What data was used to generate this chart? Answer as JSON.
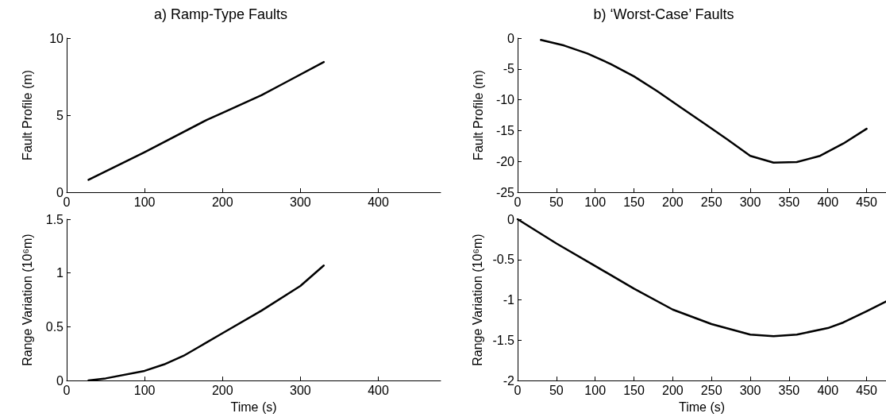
{
  "chart_data": [
    {
      "type": "line",
      "title": "a) Ramp-Type Faults",
      "ylabel": "Fault Profile (m)",
      "xlim": [
        0,
        480
      ],
      "xticks": [
        0,
        100,
        200,
        300,
        400
      ],
      "ylim": [
        0,
        10
      ],
      "yticks": [
        0,
        5,
        10
      ],
      "grid": false,
      "marker": "none",
      "line_style": "solid",
      "series": [
        {
          "color": "#000000",
          "x": [
            28,
            100,
            180,
            200,
            250,
            280,
            330
          ],
          "values": [
            0.8,
            2.6,
            4.7,
            5.15,
            6.3,
            7.1,
            8.45
          ]
        }
      ]
    },
    {
      "type": "line",
      "xlabel": "Time (s)",
      "ylabel": "Range Variation (10⁶m)",
      "xlim": [
        0,
        480
      ],
      "xticks": [
        0,
        100,
        200,
        300,
        400
      ],
      "ylim": [
        0,
        1.5
      ],
      "yticks": [
        0,
        0.5,
        1,
        1.5
      ],
      "grid": false,
      "marker": "none",
      "line_style": "solid",
      "series": [
        {
          "color": "#000000",
          "x": [
            28,
            50,
            100,
            125,
            150,
            200,
            250,
            300,
            330
          ],
          "values": [
            0,
            0.02,
            0.09,
            0.15,
            0.23,
            0.44,
            0.65,
            0.88,
            1.07
          ]
        }
      ]
    },
    {
      "type": "line",
      "title": "b) ‘Worst-Case’ Faults",
      "ylabel": "Fault Profile (m)",
      "xlim": [
        0,
        475
      ],
      "xticks": [
        0,
        50,
        100,
        150,
        200,
        250,
        300,
        350,
        400,
        450
      ],
      "ylim": [
        -25,
        0
      ],
      "yticks": [
        -25,
        -20,
        -15,
        -10,
        -5,
        0
      ],
      "grid": false,
      "marker": "none",
      "line_style": "solid",
      "series": [
        {
          "color": "#000000",
          "x": [
            30,
            60,
            90,
            120,
            150,
            180,
            210,
            240,
            270,
            300,
            330,
            360,
            390,
            420,
            450
          ],
          "values": [
            -0.3,
            -1.2,
            -2.5,
            -4.2,
            -6.2,
            -8.6,
            -11.2,
            -13.8,
            -16.4,
            -19.1,
            -20.2,
            -20.1,
            -19.1,
            -17.1,
            -14.7
          ]
        }
      ]
    },
    {
      "type": "line",
      "xlabel": "Time (s)",
      "ylabel": "Range Variation (10⁶m)",
      "xlim": [
        0,
        475
      ],
      "xticks": [
        0,
        50,
        100,
        150,
        200,
        250,
        300,
        350,
        400,
        450
      ],
      "ylim": [
        -2,
        0
      ],
      "yticks": [
        -2,
        -1.5,
        -1,
        -0.5,
        0
      ],
      "grid": false,
      "marker": "none",
      "line_style": "solid",
      "series": [
        {
          "color": "#000000",
          "x": [
            0,
            50,
            100,
            150,
            200,
            250,
            300,
            330,
            360,
            400,
            420,
            450,
            475
          ],
          "values": [
            0,
            -0.3,
            -0.58,
            -0.86,
            -1.12,
            -1.3,
            -1.43,
            -1.45,
            -1.43,
            -1.35,
            -1.28,
            -1.14,
            -1.02
          ]
        }
      ]
    }
  ]
}
